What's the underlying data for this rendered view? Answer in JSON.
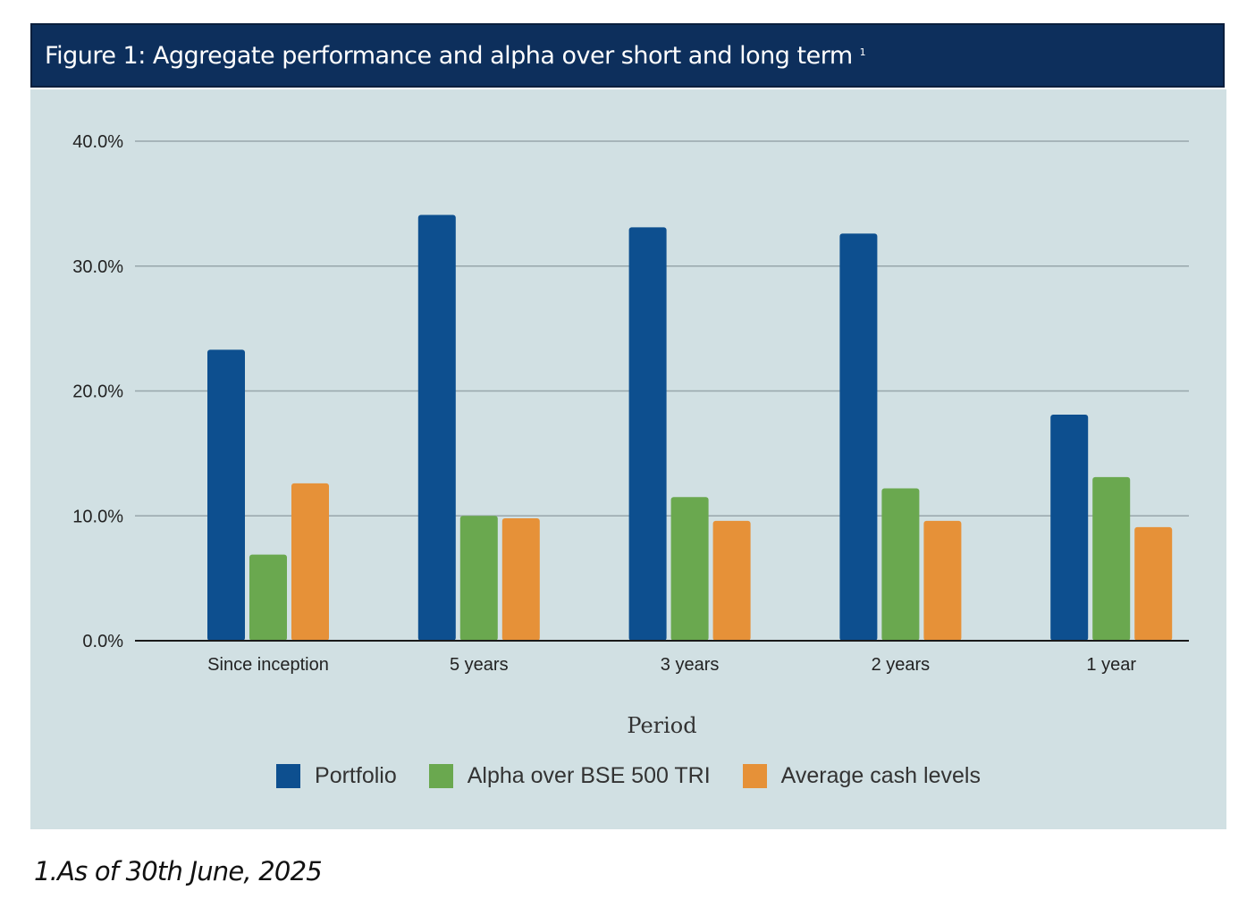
{
  "header": {
    "title": "Figure 1:  Aggregate performance and alpha over short and long term",
    "superscript": "1"
  },
  "chart_data": {
    "type": "bar",
    "title": "",
    "xlabel": "Period",
    "ylabel": "",
    "categories": [
      "Since inception",
      "5 years",
      "3 years",
      "2 years",
      "1 year"
    ],
    "series": [
      {
        "name": "Portfolio",
        "color": "#0d4f8f",
        "values": [
          23.3,
          34.1,
          33.1,
          32.6,
          18.1
        ]
      },
      {
        "name": "Alpha over BSE 500 TRI",
        "color": "#6aa84f",
        "values": [
          6.9,
          10.0,
          11.5,
          12.2,
          13.1
        ]
      },
      {
        "name": "Average cash levels",
        "color": "#e69138",
        "values": [
          12.6,
          9.8,
          9.6,
          9.6,
          9.1
        ]
      }
    ],
    "ylim": [
      0,
      40
    ],
    "yticks": [
      "0.0%",
      "10.0%",
      "20.0%",
      "30.0%",
      "40.0%"
    ],
    "grid": true,
    "legend_position": "bottom"
  },
  "footnote": "1.As of 30th June, 2025"
}
